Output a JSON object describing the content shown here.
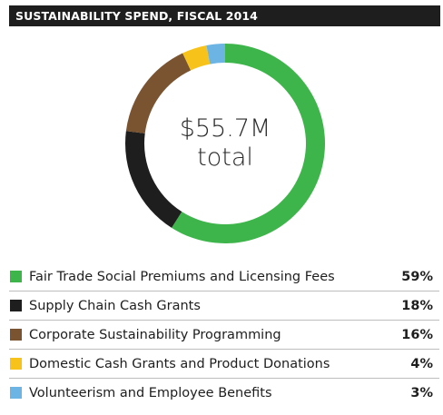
{
  "header": {
    "title": "SUSTAINABILITY SPEND, FISCAL 2014"
  },
  "center": {
    "value": "$55.7M",
    "label": "total"
  },
  "chart_data": {
    "type": "pie",
    "variant": "donut",
    "title": "SUSTAINABILITY SPEND, FISCAL 2014",
    "total_label": "$55.7M total",
    "legend_placement": "bottom",
    "slices": [
      {
        "label": "Fair Trade Social Premiums and Licensing Fees",
        "value": 59,
        "display": "59%",
        "color": "#3db54a"
      },
      {
        "label": "Supply Chain Cash Grants",
        "value": 18,
        "display": "18%",
        "color": "#1e1e1e"
      },
      {
        "label": "Corporate Sustainability Programming",
        "value": 16,
        "display": "16%",
        "color": "#7a5430"
      },
      {
        "label": "Domestic Cash Grants and Product Donations",
        "value": 4,
        "display": "4%",
        "color": "#f7c31a"
      },
      {
        "label": "Volunteerism and Employee Benefits",
        "value": 3,
        "display": "3%",
        "color": "#6cb4e4"
      }
    ]
  }
}
